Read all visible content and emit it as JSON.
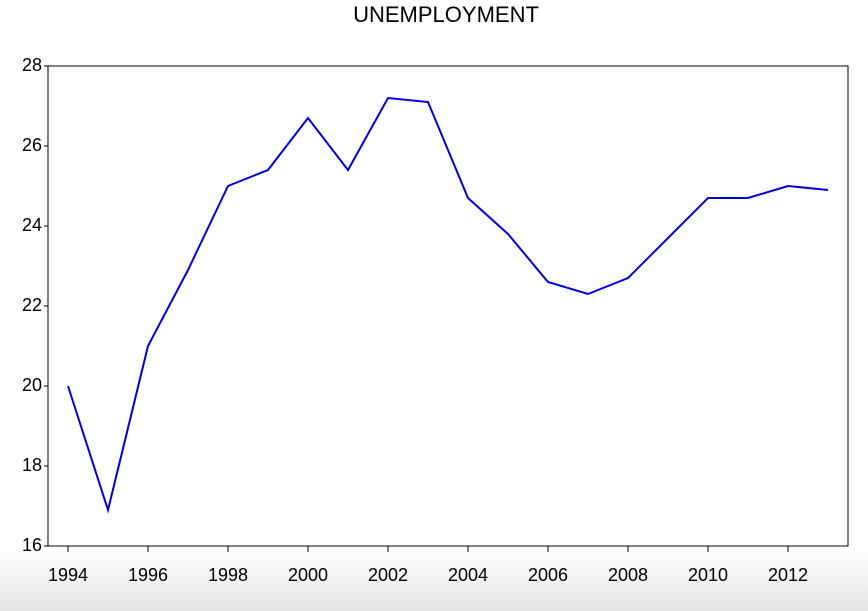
{
  "chart_data": {
    "type": "line",
    "title": "UNEMPLOYMENT",
    "x": [
      1994,
      1995,
      1996,
      1997,
      1998,
      1999,
      2000,
      2001,
      2002,
      2003,
      2004,
      2005,
      2006,
      2007,
      2008,
      2009,
      2010,
      2011,
      2012,
      2013
    ],
    "series": [
      {
        "name": "UNEMPLOYMENT",
        "color": "#0000dd",
        "values": [
          20.0,
          16.9,
          21.0,
          22.9,
          25.0,
          25.4,
          26.7,
          25.4,
          27.2,
          27.1,
          24.7,
          23.8,
          22.6,
          22.3,
          22.7,
          23.7,
          24.7,
          24.7,
          25.0,
          24.9
        ]
      }
    ],
    "xlim": [
      1993.5,
      2013.5
    ],
    "xticks": [
      1994,
      1996,
      1998,
      2000,
      2002,
      2004,
      2006,
      2008,
      2010,
      2012
    ],
    "ylim": [
      16,
      28
    ],
    "yticks": [
      16,
      18,
      20,
      22,
      24,
      26,
      28
    ],
    "grid": false
  }
}
